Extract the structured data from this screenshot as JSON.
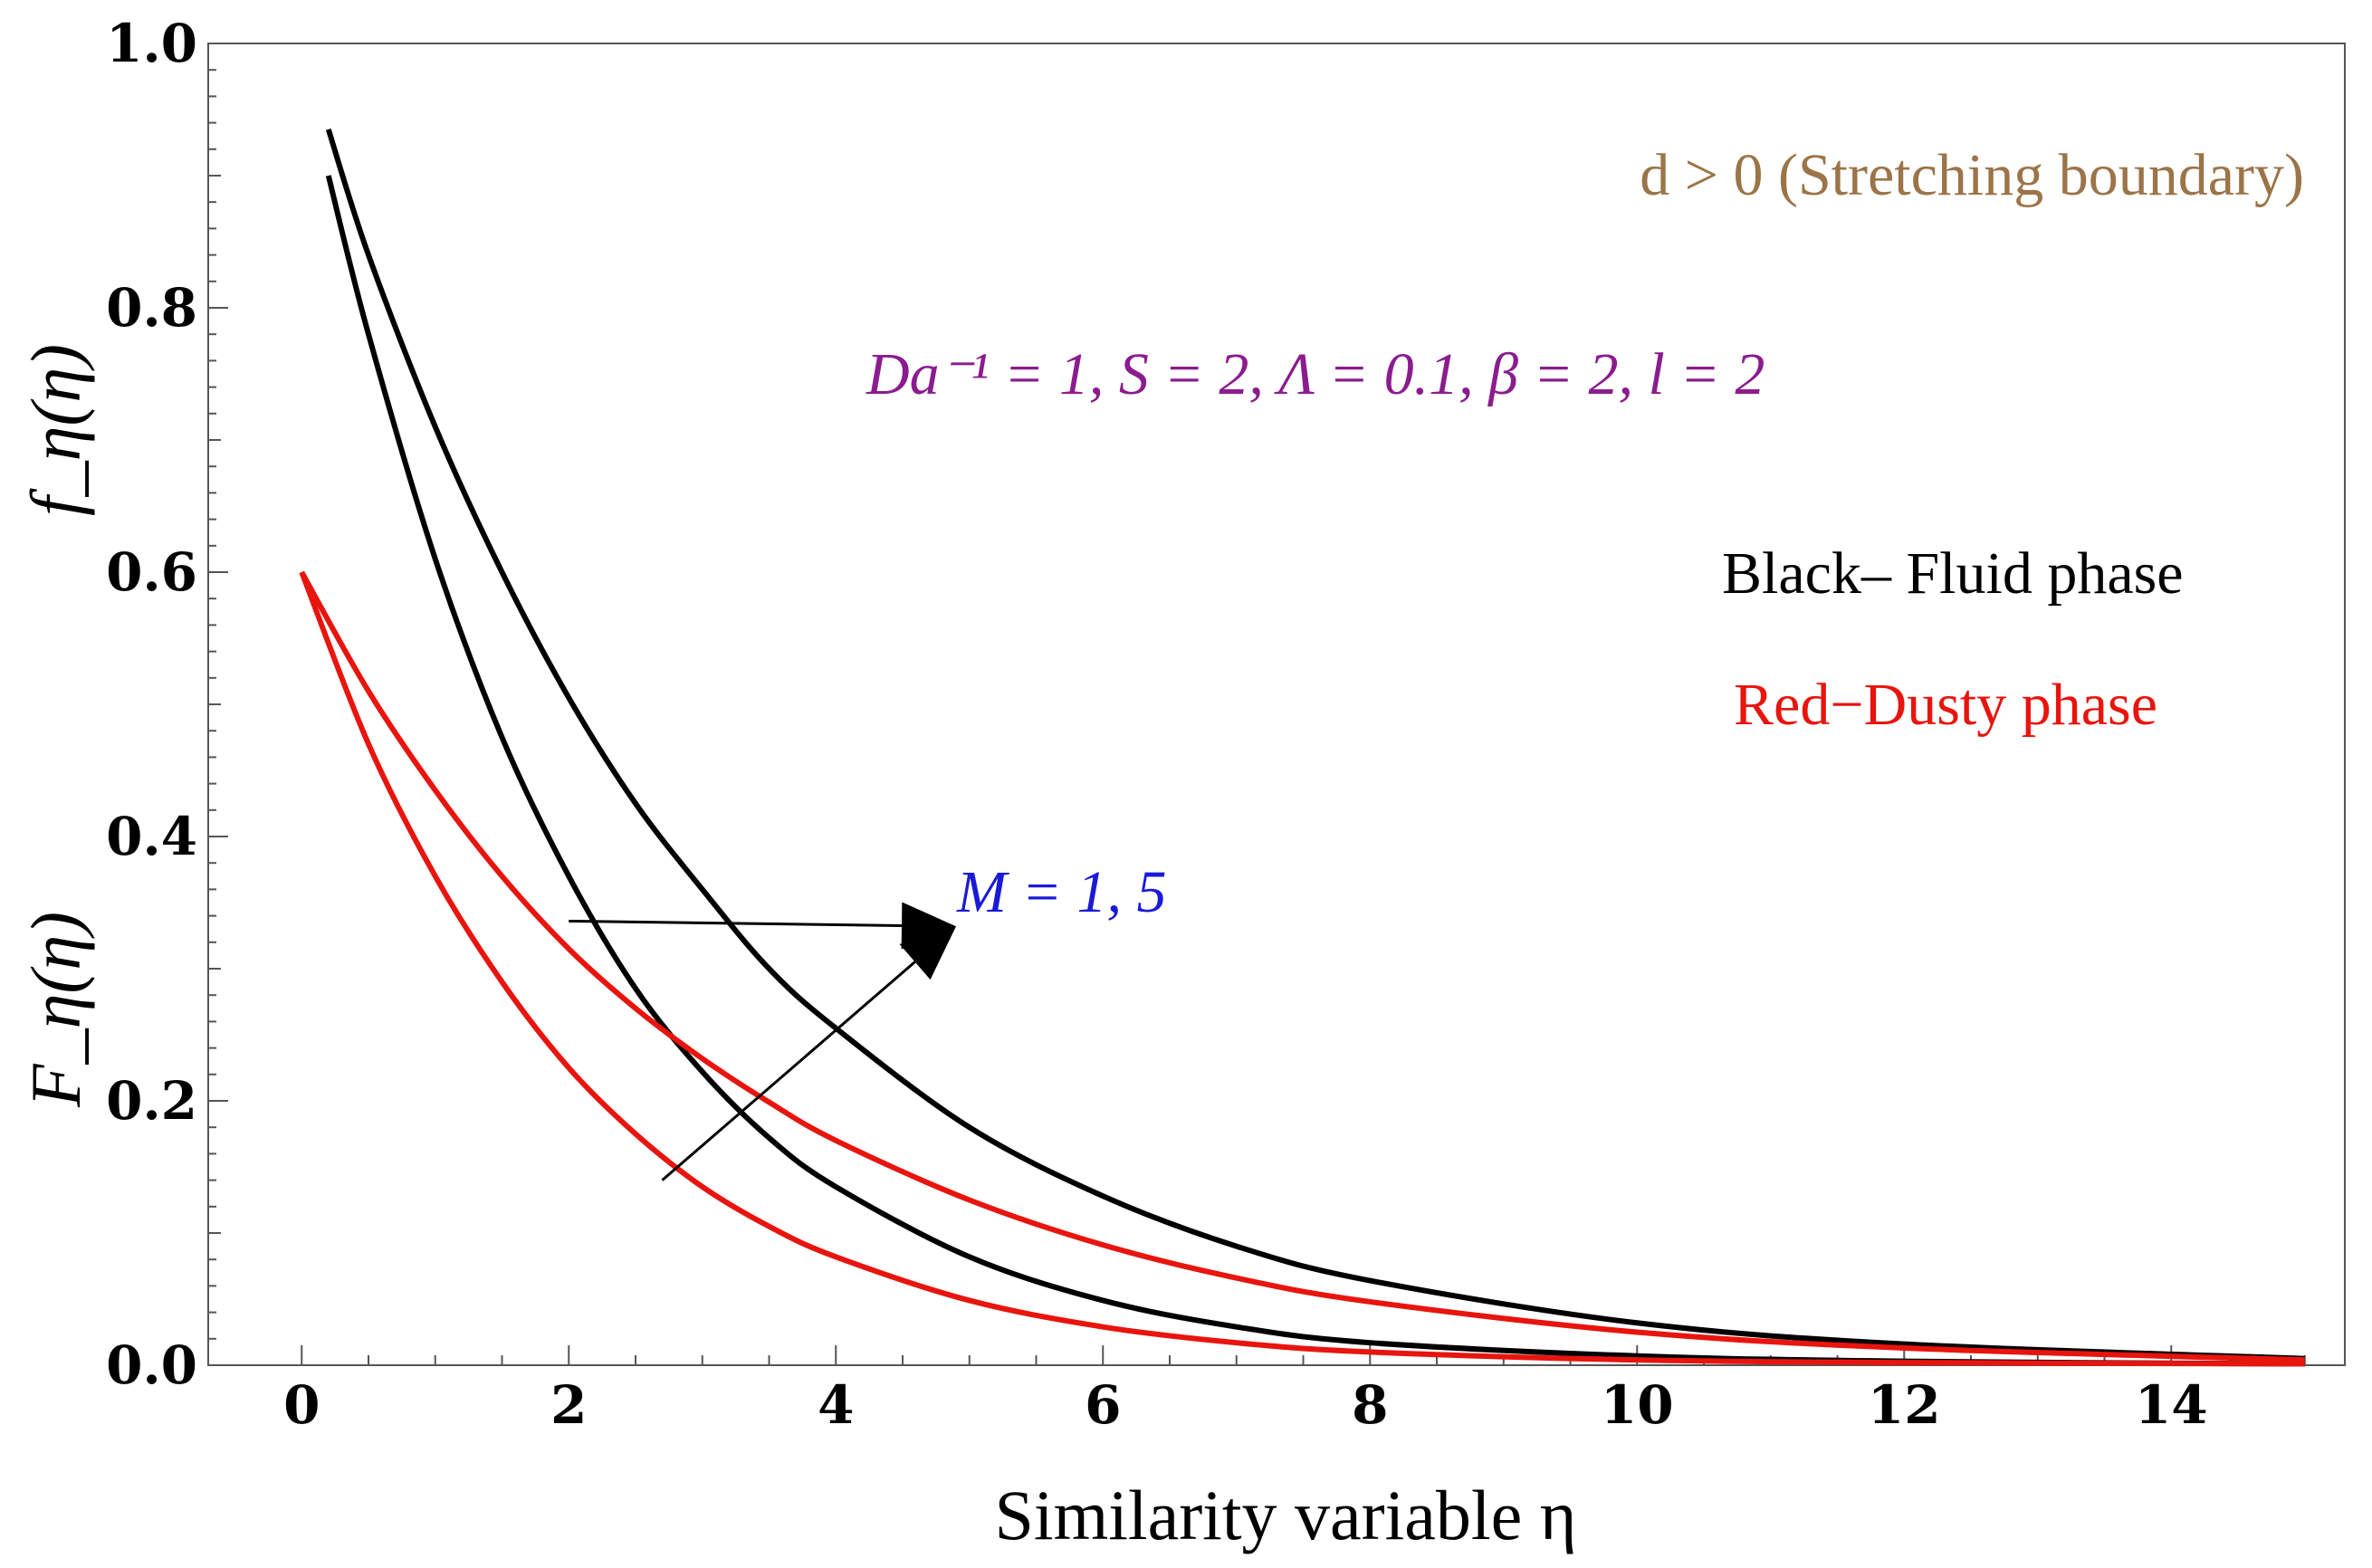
{
  "chart_data": {
    "type": "line",
    "xlabel": "Similarity variable η",
    "ylabel_top": "f_η(η)",
    "ylabel_bottom": "F_η(η)",
    "xlim": [
      -0.7,
      15.3
    ],
    "ylim": [
      0.0,
      1.0
    ],
    "xticks": [
      "0",
      "2",
      "4",
      "6",
      "8",
      "10",
      "12",
      "14"
    ],
    "yticks": [
      "0.0",
      "0.2",
      "0.4",
      "0.6",
      "0.8",
      "1.0"
    ],
    "series": [
      {
        "name": "Fluid phase, M = 1",
        "color": "#000000",
        "x": [
          0.2,
          0.5,
          1,
          1.5,
          2,
          2.5,
          3,
          3.5,
          4,
          5,
          6,
          7,
          8,
          10,
          12,
          15
        ],
        "y": [
          0.9,
          0.78,
          0.61,
          0.475,
          0.37,
          0.285,
          0.222,
          0.172,
          0.135,
          0.082,
          0.049,
          0.029,
          0.017,
          0.007,
          0.003,
          0.001
        ]
      },
      {
        "name": "Fluid phase, M = 5",
        "color": "#000000",
        "x": [
          0.2,
          0.5,
          1,
          1.5,
          2,
          2.5,
          3,
          3.5,
          4,
          5,
          6,
          7,
          8,
          10,
          12,
          15
        ],
        "y": [
          0.935,
          0.84,
          0.71,
          0.6,
          0.505,
          0.425,
          0.36,
          0.3,
          0.255,
          0.18,
          0.128,
          0.09,
          0.064,
          0.032,
          0.016,
          0.005
        ]
      },
      {
        "name": "Dusty phase, M = 1",
        "color": "#e8140e",
        "x": [
          0,
          0.5,
          1,
          1.5,
          2,
          2.5,
          3,
          3.5,
          4,
          5,
          6,
          7,
          8,
          10,
          12,
          15
        ],
        "y": [
          0.6,
          0.47,
          0.37,
          0.29,
          0.225,
          0.175,
          0.135,
          0.105,
          0.082,
          0.049,
          0.029,
          0.017,
          0.01,
          0.004,
          0.002,
          0.001
        ]
      },
      {
        "name": "Dusty phase, M = 5",
        "color": "#e8140e",
        "x": [
          0,
          0.5,
          1,
          1.5,
          2,
          2.5,
          3,
          3.5,
          4,
          5,
          6,
          7,
          8,
          10,
          12,
          15
        ],
        "y": [
          0.6,
          0.51,
          0.435,
          0.37,
          0.315,
          0.27,
          0.232,
          0.199,
          0.17,
          0.125,
          0.091,
          0.066,
          0.048,
          0.025,
          0.013,
          0.004
        ]
      }
    ],
    "arrows": [
      {
        "from": [
          2.0,
          0.336
        ],
        "to": [
          4.9,
          0.332
        ]
      },
      {
        "from": [
          2.7,
          0.14
        ],
        "to": [
          4.9,
          0.332
        ]
      }
    ],
    "annotations": {
      "stretching": "d > 0 (Stretching boundary)",
      "params": "Da⁻¹ = 1, S = 2, Λ = 0.1, β = 2, l = 2",
      "black_legend": "Black– Fluid phase",
      "red_legend": "Red−Dusty phase",
      "m_label": "M = 1, 5"
    },
    "colors": {
      "fluid": "#000000",
      "dusty": "#e8140e",
      "stretching": "#9b7448",
      "params": "#8b1c8e",
      "m_label": "#1a1ad6"
    }
  }
}
